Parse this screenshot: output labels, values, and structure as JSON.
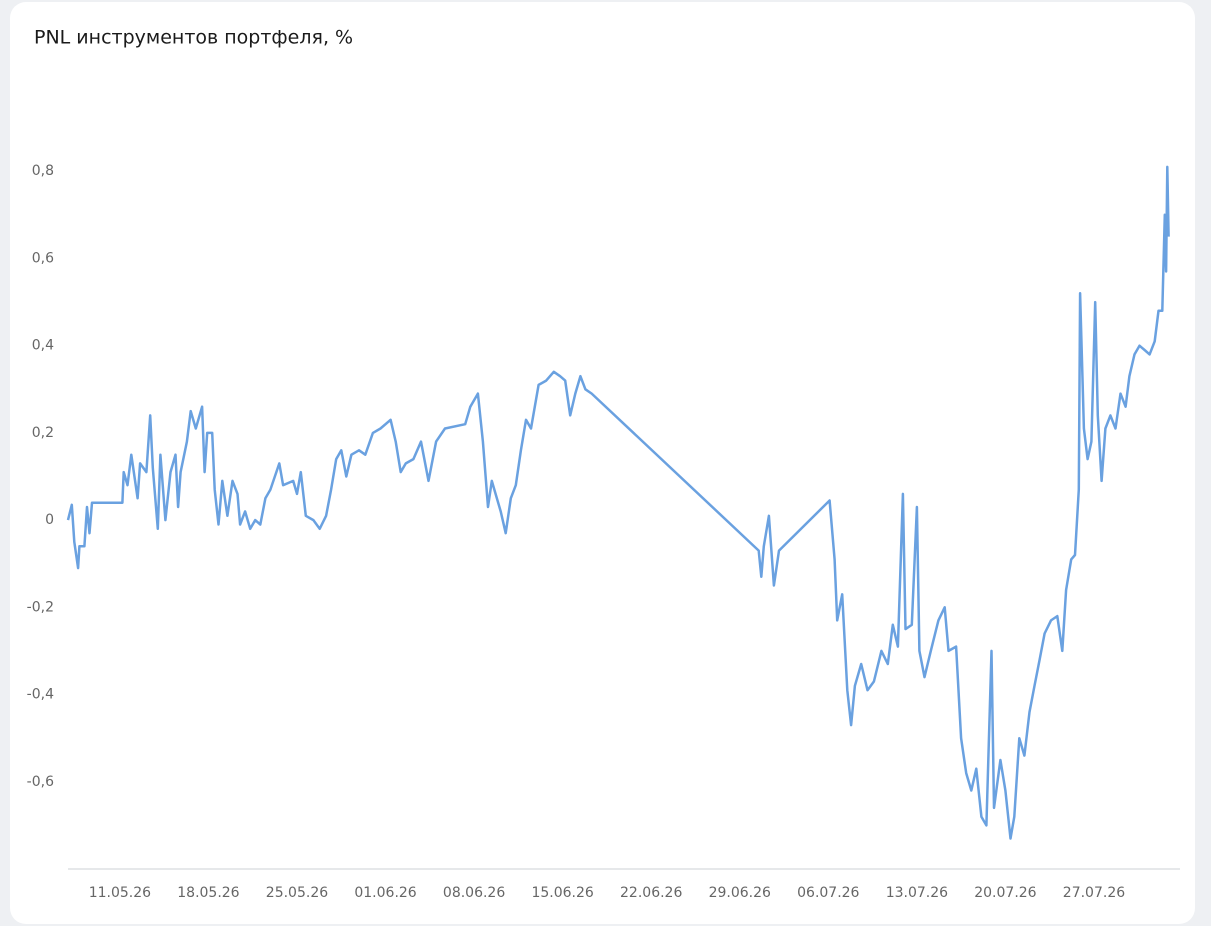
{
  "chart_data": {
    "type": "line",
    "title": "PNL инструментов портфеля, %",
    "x": [
      126.9,
      127.2,
      127.4,
      127.7,
      127.8,
      128.2,
      128.4,
      128.6,
      128.8,
      131.2,
      131.3,
      131.6,
      131.9,
      132.4,
      132.6,
      133.1,
      133.4,
      133.6,
      134.0,
      134.2,
      134.6,
      135.0,
      135.4,
      135.6,
      135.8,
      136.3,
      136.6,
      137.0,
      137.5,
      137.7,
      137.9,
      138.3,
      138.5,
      138.8,
      139.1,
      139.5,
      139.9,
      140.3,
      140.5,
      140.9,
      141.3,
      141.7,
      142.1,
      142.5,
      142.9,
      143.6,
      143.9,
      144.7,
      145.0,
      145.3,
      145.7,
      146.3,
      146.8,
      147.3,
      147.7,
      148.1,
      148.5,
      148.9,
      149.3,
      149.9,
      150.4,
      151.0,
      151.6,
      152.4,
      152.8,
      153.2,
      153.6,
      154.2,
      154.8,
      155.4,
      156.0,
      156.7,
      158.3,
      158.7,
      159.3,
      159.7,
      160.1,
      160.4,
      161.1,
      161.5,
      161.9,
      162.3,
      162.7,
      163.1,
      163.5,
      164.1,
      164.7,
      165.3,
      165.8,
      166.2,
      166.6,
      167.0,
      167.4,
      167.8,
      168.3,
      181.5,
      181.7,
      181.9,
      182.3,
      182.7,
      183.1,
      187.1,
      187.5,
      187.7,
      188.1,
      188.5,
      188.8,
      189.1,
      189.6,
      190.1,
      190.6,
      191.2,
      191.7,
      192.1,
      192.5,
      192.9,
      193.1,
      193.6,
      194.0,
      194.2,
      194.6,
      195.1,
      195.7,
      196.2,
      196.5,
      197.1,
      197.5,
      197.9,
      198.3,
      198.7,
      199.1,
      199.5,
      199.9,
      200.1,
      200.6,
      201.0,
      201.4,
      201.7,
      202.1,
      202.5,
      202.9,
      203.3,
      203.7,
      204.1,
      204.6,
      205.1,
      205.5,
      205.8,
      206.2,
      206.5,
      206.8,
      206.9,
      207.2,
      207.5,
      207.8,
      208.1,
      208.3,
      208.6,
      208.9,
      209.3,
      209.7,
      210.1,
      210.5,
      210.8,
      211.2,
      211.6,
      212.0,
      212.4,
      212.8,
      213.1,
      213.4,
      213.6,
      213.7,
      213.8,
      213.9
    ],
    "series": [
      {
        "color": "#6aa1e0",
        "values": [
          0,
          0.035,
          -0.05,
          -0.11,
          -0.06,
          -0.06,
          0.03,
          -0.03,
          0.04,
          0.04,
          0.11,
          0.08,
          0.15,
          0.05,
          0.13,
          0.11,
          0.24,
          0.12,
          -0.02,
          0.15,
          0,
          0.11,
          0.15,
          0.03,
          0.11,
          0.18,
          0.25,
          0.21,
          0.26,
          0.11,
          0.2,
          0.2,
          0.07,
          -0.01,
          0.09,
          0.01,
          0.09,
          0.06,
          -0.01,
          0.02,
          -0.02,
          0,
          -0.01,
          0.05,
          0.07,
          0.13,
          0.08,
          0.09,
          0.06,
          0.11,
          0.01,
          0,
          -0.02,
          0.01,
          0.07,
          0.14,
          0.16,
          0.1,
          0.15,
          0.16,
          0.15,
          0.2,
          0.21,
          0.23,
          0.18,
          0.11,
          0.13,
          0.14,
          0.18,
          0.09,
          0.18,
          0.21,
          0.22,
          0.26,
          0.29,
          0.18,
          0.03,
          0.09,
          0.02,
          -0.03,
          0.05,
          0.08,
          0.16,
          0.23,
          0.21,
          0.31,
          0.32,
          0.34,
          0.33,
          0.32,
          0.24,
          0.29,
          0.33,
          0.3,
          0.29,
          -0.07,
          -0.13,
          -0.06,
          0.01,
          -0.15,
          -0.07,
          0.045,
          -0.09,
          -0.23,
          -0.17,
          -0.39,
          -0.47,
          -0.38,
          -0.33,
          -0.39,
          -0.37,
          -0.3,
          -0.33,
          -0.24,
          -0.29,
          0.06,
          -0.25,
          -0.24,
          0.03,
          -0.3,
          -0.36,
          -0.3,
          -0.23,
          -0.2,
          -0.3,
          -0.29,
          -0.5,
          -0.58,
          -0.62,
          -0.57,
          -0.68,
          -0.7,
          -0.3,
          -0.66,
          -0.55,
          -0.62,
          -0.73,
          -0.68,
          -0.5,
          -0.54,
          -0.44,
          -0.38,
          -0.32,
          -0.26,
          -0.23,
          -0.22,
          -0.3,
          -0.16,
          -0.09,
          -0.08,
          0.07,
          0.52,
          0.21,
          0.14,
          0.18,
          0.5,
          0.24,
          0.09,
          0.21,
          0.24,
          0.21,
          0.29,
          0.26,
          0.33,
          0.38,
          0.4,
          0.39,
          0.38,
          0.41,
          0.48,
          0.48,
          0.7,
          0.57,
          0.81,
          0.65
        ]
      }
    ],
    "xlim": [
      126.9,
      214.8
    ],
    "xticks": [
      {
        "value": 131,
        "label": "11.05.26"
      },
      {
        "value": 138,
        "label": "18.05.26"
      },
      {
        "value": 145,
        "label": "25.05.26"
      },
      {
        "value": 152,
        "label": "01.06.26"
      },
      {
        "value": 159,
        "label": "08.06.26"
      },
      {
        "value": 166,
        "label": "15.06.26"
      },
      {
        "value": 173,
        "label": "22.06.26"
      },
      {
        "value": 180,
        "label": "29.06.26"
      },
      {
        "value": 187,
        "label": "06.07.26"
      },
      {
        "value": 194,
        "label": "13.07.26"
      },
      {
        "value": 201,
        "label": "20.07.26"
      },
      {
        "value": 208,
        "label": "27.07.26"
      }
    ],
    "ylim": [
      -0.8,
      1.0
    ],
    "yticks": [
      {
        "value": -0.6,
        "label": "-0,6"
      },
      {
        "value": -0.4,
        "label": "-0,4"
      },
      {
        "value": -0.2,
        "label": "-0,2"
      },
      0,
      {
        "value": 0.2,
        "label": "0,2"
      },
      {
        "value": 0.4,
        "label": "0,4"
      },
      {
        "value": 0.6,
        "label": "0,6"
      },
      {
        "value": 0.8,
        "label": "0,8"
      }
    ],
    "grid": true
  }
}
